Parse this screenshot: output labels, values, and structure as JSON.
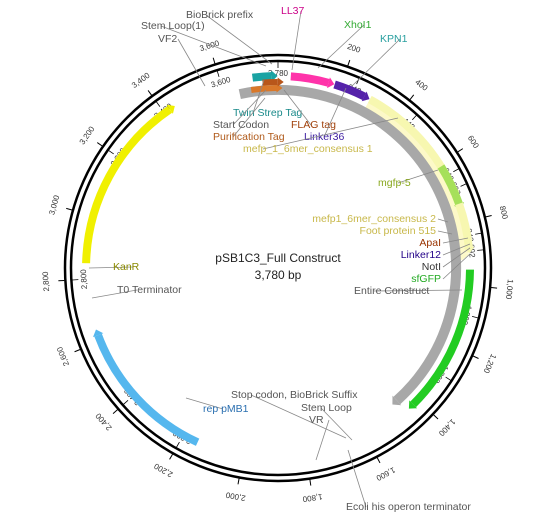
{
  "map": {
    "name": "pSB1C3_Full Construct",
    "length_label": "3,780 bp",
    "length_bp": 3780
  },
  "ticks": [
    {
      "bp": 200,
      "label": "200"
    },
    {
      "bp": 400,
      "label": "400"
    },
    {
      "bp": 600,
      "label": "600"
    },
    {
      "bp": 800,
      "label": "800"
    },
    {
      "bp": 1000,
      "label": "1,000"
    },
    {
      "bp": 1200,
      "label": "1,200"
    },
    {
      "bp": 1400,
      "label": "1,400"
    },
    {
      "bp": 1600,
      "label": "1,600"
    },
    {
      "bp": 1800,
      "label": "1,800"
    },
    {
      "bp": 2000,
      "label": "2,000"
    },
    {
      "bp": 2200,
      "label": "2,200"
    },
    {
      "bp": 2400,
      "label": "2,400"
    },
    {
      "bp": 2600,
      "label": "2,600"
    },
    {
      "bp": 2800,
      "label": "2,800"
    },
    {
      "bp": 3000,
      "label": "3,000"
    },
    {
      "bp": 3200,
      "label": "3,200"
    },
    {
      "bp": 3400,
      "label": "3,400"
    },
    {
      "bp": 3600,
      "label": "3,600"
    }
  ],
  "inner_ticks": [
    {
      "bp": 243,
      "label": "243"
    },
    {
      "bp": 443,
      "label": "443"
    },
    {
      "bp": 643,
      "label": "643"
    },
    {
      "bp": 843,
      "label": "843"
    },
    {
      "bp": 692,
      "label": "692"
    },
    {
      "bp": 892,
      "label": "892"
    },
    {
      "bp": 1092,
      "label": "1,092"
    },
    {
      "bp": 1292,
      "label": "1,292"
    },
    {
      "bp": 3780,
      "label": "3,780"
    },
    {
      "bp": 3600,
      "label": "3,600"
    },
    {
      "bp": 3400,
      "label": "3,400"
    },
    {
      "bp": 3200,
      "label": "3,200"
    },
    {
      "bp": 2800,
      "label": "2,800"
    },
    {
      "bp": 2400,
      "label": "2,400"
    },
    {
      "bp": 2200,
      "label": "2,200"
    }
  ],
  "features": [
    {
      "name": "Entire Construct",
      "start": 3650,
      "end": 1450,
      "track": "gray",
      "color": "#a8a8a8",
      "label_color": "#555555"
    },
    {
      "name": "mefp_1_6mer_consensus 1",
      "start": 300,
      "end": 700,
      "track": "outer",
      "color": "#f7f7b0",
      "label_color": "#c8b84a"
    },
    {
      "name": "mgfp-5",
      "start": 610,
      "end": 740,
      "track": "outer",
      "color": "#a6e05a",
      "label_color": "#8aa820"
    },
    {
      "name": "mefp1_6mer_consensus 2",
      "start": 740,
      "end": 880,
      "track": "outer",
      "color": "#f7f7b0",
      "label_color": "#c8b84a"
    },
    {
      "name": "Foot protein 515",
      "start": 300,
      "end": 900,
      "track": "outer2",
      "color": "#fdf9c8",
      "label_color": "#c8b84a"
    },
    {
      "name": "sfGFP",
      "start": 950,
      "end": 1420,
      "track": "outer",
      "color": "#22cc22",
      "label_color": "#22aa22"
    },
    {
      "name": "KanR",
      "start": 2850,
      "end": 3420,
      "track": "outer",
      "color": "#f0f000",
      "label_color": "#8a8a00"
    },
    {
      "name": "rep pMB1",
      "start": 2150,
      "end": 2620,
      "track": "outer",
      "color": "#55b7ee",
      "label_color": "#2a6fb0"
    },
    {
      "name": "Twin Strep Tag",
      "start": 3700,
      "end": 3760,
      "track": "outer",
      "color": "#1aa3a3",
      "label_color": "#1a8a8a"
    },
    {
      "name": "LL37",
      "start": 40,
      "end": 160,
      "track": "outer",
      "color": "#ff33aa",
      "label_color": "#cc0088"
    },
    {
      "name": "Linker36",
      "start": 180,
      "end": 280,
      "track": "outer",
      "color": "#5522aa",
      "label_color": "#3a1aa0"
    },
    {
      "name": "Purification Tag",
      "start": 3690,
      "end": 3775,
      "track": "gray2",
      "color": "#d9782a",
      "label_color": "#b05a1a"
    },
    {
      "name": "FLAG tag",
      "start": 3730,
      "end": 3779,
      "track": "gray3",
      "color": "#b8561a",
      "label_color": "#a0400a"
    }
  ],
  "labels": {
    "biobrick_prefix": "BioBrick prefix",
    "stem_loop_1": "Stem Loop(1)",
    "vf2": "VF2",
    "ll37": "LL37",
    "xhoi": "XhoI1",
    "kpn1": "KPN1",
    "twin_strep": "Twin Strep Tag",
    "start_codon": "Start Codon",
    "flag_tag": "FLAG tag",
    "purification_tag": "Purification Tag",
    "linker36": "Linker36",
    "mefp1": "mefp_1_6mer_consensus 1",
    "mgfp5": "mgfp-5",
    "mefp2": "mefp1_6mer_consensus 2",
    "foot_protein": "Foot protein 515",
    "apai": "ApaI",
    "linker12": "Linker12",
    "noti": "NotI",
    "sfgfp": "sfGFP",
    "entire_construct": "Entire Construct",
    "kanr": "KanR",
    "t0": "T0 Terminator",
    "rep_pmb1": "rep pMB1",
    "stop_codon": "Stop codon, BioBrick Suffix",
    "stem_loop": "Stem Loop",
    "vr": "VR",
    "ecoli_term": "Ecoli his operon terminator"
  },
  "colors": {
    "backbone": "#000000",
    "prefix_label": "#555555",
    "xhoi": "#33aa33",
    "kpn1": "#2aa0a0",
    "apai": "#993300",
    "linker12": "#220088",
    "noti": "#333333"
  }
}
